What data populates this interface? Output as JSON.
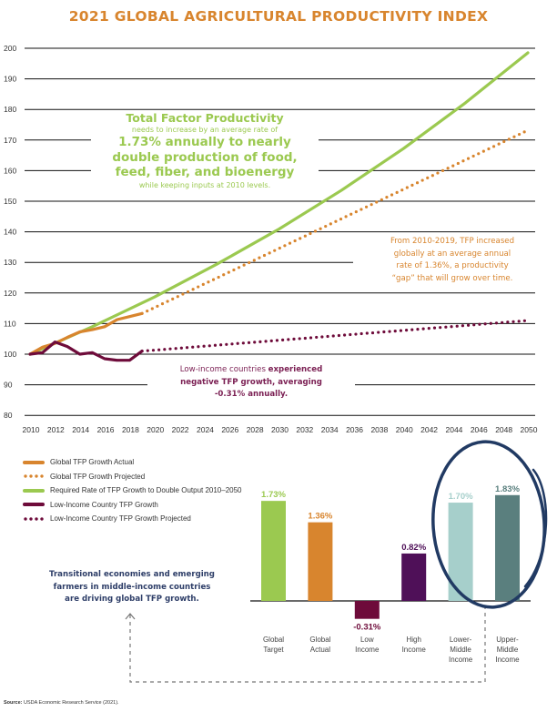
{
  "title": "2021 GLOBAL AGRICULTURAL PRODUCTIVITY INDEX",
  "annotations": {
    "tfp_heading": "Total Factor Productivity",
    "tfp_sub1": "needs to increase by an average rate of",
    "tfp_bold1": "1.73% annually to nearly",
    "tfp_bold2": "double production of food,",
    "tfp_bold3": "feed, fiber, and bioenergy",
    "tfp_sub2": "while keeping inputs at 2010 levels.",
    "gap_line1": "From 2010-2019, TFP increased",
    "gap_line2": "globally at an average annual",
    "gap_line3": "rate of 1.36%, a productivity",
    "gap_line4": "“gap” that will grow over time.",
    "low_line1a": "Low-income countries ",
    "low_line1b": "experienced",
    "low_line2": "negative TFP growth, averaging",
    "low_line3": "-0.31% annually.",
    "trans_line1": "Transitional economies and emerging",
    "trans_line2": "farmers in middle-income countries",
    "trans_line3": "are driving global TFP growth."
  },
  "source_label": "Source:",
  "source_text": "USDA Economic Research Service (2021).",
  "colors": {
    "title": "#d8852e",
    "green": "#9bc950",
    "orange": "#d8852e",
    "low_income": "#6e0b3a",
    "high_income": "#4f1058",
    "lower_middle": "#a6cfcb",
    "upper_middle": "#5a7f7e",
    "circle": "#213a63"
  },
  "chart_data": [
    {
      "type": "line",
      "title": "2021 Global Agricultural Productivity Index",
      "xlabel": "",
      "ylabel": "",
      "xlim": [
        2010,
        2050
      ],
      "ylim": [
        80,
        200
      ],
      "x_ticks": [
        "2010",
        "2012",
        "2014",
        "2016",
        "2018",
        "2020",
        "2022",
        "2024",
        "2026",
        "2028",
        "2030",
        "2032",
        "2034",
        "2036",
        "2038",
        "2040",
        "2042",
        "2044",
        "2046",
        "2048",
        "2050"
      ],
      "y_ticks": [
        "200",
        "190",
        "180",
        "170",
        "160",
        "150",
        "140",
        "130",
        "120",
        "110",
        "100",
        "90",
        "80"
      ],
      "grid": "horizontal",
      "legend_position": "bottom-left",
      "series": [
        {
          "name": "Global TFP Growth Actual",
          "style": "solid",
          "color": "#d8852e",
          "x": [
            2010,
            2011,
            2012,
            2013,
            2014,
            2015,
            2016,
            2017,
            2018,
            2019
          ],
          "y": [
            100,
            102.3,
            103.5,
            105.5,
            107.3,
            108,
            109,
            111.3,
            112.3,
            113.3
          ]
        },
        {
          "name": "Global TFP Growth Projected",
          "style": "dotted",
          "color": "#d8852e",
          "x": [
            2019,
            2050
          ],
          "y": [
            113.3,
            173.2
          ]
        },
        {
          "name": "Required Rate of TFP Growth to Double Output 2010–2050",
          "style": "solid",
          "color": "#9bc950",
          "x": [
            2010,
            2015,
            2020,
            2025,
            2030,
            2035,
            2040,
            2045,
            2050
          ],
          "y": [
            100,
            109,
            118.7,
            129.4,
            140.9,
            153.5,
            167.2,
            182.2,
            198.5
          ]
        },
        {
          "name": "Low-Income Country TFP Growth",
          "style": "solid",
          "color": "#6e0b3a",
          "x": [
            2010,
            2011,
            2012,
            2013,
            2014,
            2015,
            2016,
            2017,
            2018,
            2019
          ],
          "y": [
            100,
            100.5,
            104,
            102.5,
            100,
            100.5,
            98.5,
            98,
            98,
            101
          ]
        },
        {
          "name": "Low-Income Country TFP Growth Projected",
          "style": "dotted",
          "color": "#6e0b3a",
          "x": [
            2019,
            2050
          ],
          "y": [
            101,
            111
          ]
        }
      ]
    },
    {
      "type": "bar",
      "title": "",
      "categories": [
        "Global Target",
        "Global Actual",
        "Low Income",
        "High Income",
        "Lower-Middle Income",
        "Upper-Middle Income"
      ],
      "category_lines": [
        [
          "Global",
          "Target"
        ],
        [
          "Global",
          "Actual"
        ],
        [
          "Low",
          "Income"
        ],
        [
          "High",
          "Income"
        ],
        [
          "Lower-",
          "Middle",
          "Income"
        ],
        [
          "Upper-",
          "Middle",
          "Income"
        ]
      ],
      "values": [
        1.73,
        1.36,
        -0.31,
        0.82,
        1.7,
        1.83
      ],
      "value_labels": [
        "1.73%",
        "1.36%",
        "-0.31%",
        "0.82%",
        "1.70%",
        "1.83%"
      ],
      "colors": [
        "#9bc950",
        "#d8852e",
        "#6e0b3a",
        "#4f1058",
        "#a6cfcb",
        "#5a7f7e"
      ],
      "unit": "%",
      "highlighted": [
        "Lower-Middle Income",
        "Upper-Middle Income"
      ]
    }
  ]
}
